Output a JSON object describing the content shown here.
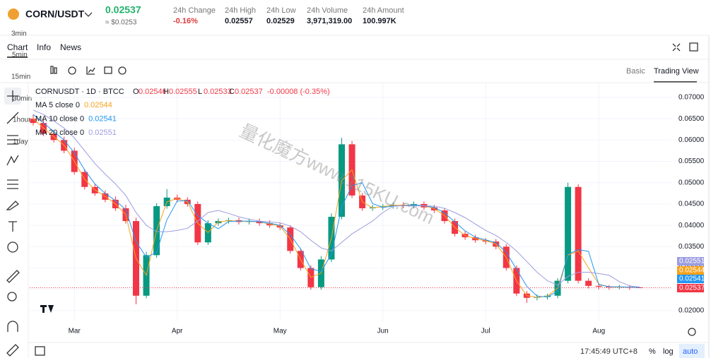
{
  "header": {
    "symbol": "CORN/USDT",
    "price": "0.02537",
    "approx": "≈ $0.0253",
    "stats": [
      {
        "label": "24h Change",
        "value": "-0.16%"
      },
      {
        "label": "24h High",
        "value": "0.02557"
      },
      {
        "label": "24h Low",
        "value": "0.02529"
      },
      {
        "label": "24h Volume",
        "value": "3,971,319.00"
      },
      {
        "label": "24h Amount",
        "value": "100.997K"
      }
    ]
  },
  "timeframes": [
    "3min",
    "15min",
    "30min",
    "1hour",
    "1day",
    "5min"
  ],
  "tabs": [
    "Chart",
    "Info",
    "News"
  ],
  "views": [
    "Basic",
    "Trading View"
  ],
  "footer": {
    "time": "17:45:49 UTC+8",
    "percent": "%",
    "log": "log",
    "auto": "auto"
  },
  "watermark": "量化魔方www.115KU.com",
  "chart_data": {
    "type": "candlestick",
    "symbol_line": "CORNUSDT · 1D · BTCC",
    "ohlc_labels": [
      "O",
      "H",
      "L",
      "C"
    ],
    "change": "-0.00008 (-0.35%)",
    "up_color": "#089981",
    "down_color": "#f23645",
    "categories": [
      null,
      null,
      null,
      null,
      "Mar",
      null,
      null,
      null,
      null,
      null,
      null,
      null,
      null,
      null,
      "Apr",
      null,
      null,
      null,
      null,
      null,
      null,
      null,
      null,
      null,
      "May",
      null,
      null,
      null,
      null,
      null,
      null,
      null,
      null,
      null,
      "Jun",
      null,
      null,
      null,
      null,
      null,
      null,
      null,
      null,
      null,
      "Jul",
      null,
      null,
      null,
      null,
      null,
      null,
      null,
      null,
      null,
      null,
      "Aug",
      null,
      null,
      null,
      null
    ],
    "open": [
      0.065,
      0.064,
      0.0615,
      0.06,
      0.0575,
      0.0525,
      0.049,
      0.0475,
      0.046,
      0.044,
      0.041,
      0.0235,
      0.033,
      0.0445,
      0.0465,
      0.046,
      0.045,
      0.036,
      0.0405,
      0.041,
      0.0412,
      0.0408,
      0.041,
      0.0405,
      0.04,
      0.0395,
      0.034,
      0.03,
      0.0255,
      0.032,
      0.042,
      0.059,
      0.047,
      0.044,
      0.0442,
      0.0445,
      0.0448,
      0.0446,
      0.045,
      0.0442,
      0.0435,
      0.041,
      0.038,
      0.0372,
      0.0365,
      0.0362,
      0.035,
      0.03,
      0.024,
      0.023,
      0.0232,
      0.0235,
      0.027,
      0.049,
      0.027,
      0.0258,
      0.0256,
      0.0255,
      0.0256,
      0.02546
    ],
    "high": [
      0.066,
      0.0648,
      0.0622,
      0.0608,
      0.0582,
      0.0532,
      0.0498,
      0.0482,
      0.0468,
      0.0448,
      0.0418,
      0.0338,
      0.0452,
      0.0485,
      0.0472,
      0.0466,
      0.0456,
      0.0412,
      0.0416,
      0.0418,
      0.0418,
      0.0416,
      0.0416,
      0.0412,
      0.0406,
      0.04,
      0.0346,
      0.0306,
      0.0328,
      0.0428,
      0.0605,
      0.0598,
      0.0476,
      0.0448,
      0.045,
      0.0454,
      0.0454,
      0.0456,
      0.0456,
      0.0448,
      0.044,
      0.0416,
      0.0386,
      0.0378,
      0.037,
      0.0368,
      0.0356,
      0.0306,
      0.0246,
      0.0238,
      0.024,
      0.0276,
      0.05,
      0.0496,
      0.0276,
      0.0264,
      0.026,
      0.026,
      0.026,
      0.02555
    ],
    "low": [
      0.0634,
      0.0609,
      0.0594,
      0.0569,
      0.0519,
      0.0484,
      0.0469,
      0.0454,
      0.0434,
      0.0404,
      0.0215,
      0.0229,
      0.0324,
      0.0439,
      0.0454,
      0.0444,
      0.0354,
      0.0354,
      0.0399,
      0.0404,
      0.0402,
      0.0402,
      0.0399,
      0.0394,
      0.0389,
      0.0334,
      0.0294,
      0.0249,
      0.0249,
      0.0314,
      0.0414,
      0.0464,
      0.0434,
      0.0434,
      0.0436,
      0.0439,
      0.044,
      0.044,
      0.0436,
      0.0429,
      0.0404,
      0.0374,
      0.0366,
      0.0359,
      0.0356,
      0.0344,
      0.0294,
      0.0234,
      0.0218,
      0.0224,
      0.0226,
      0.0229,
      0.0264,
      0.0264,
      0.0252,
      0.025,
      0.0249,
      0.025,
      0.0249,
      0.02533
    ],
    "close": [
      0.064,
      0.0615,
      0.06,
      0.0575,
      0.0525,
      0.049,
      0.0475,
      0.046,
      0.044,
      0.041,
      0.0235,
      0.033,
      0.0445,
      0.0465,
      0.046,
      0.045,
      0.036,
      0.0405,
      0.041,
      0.0412,
      0.0408,
      0.041,
      0.0405,
      0.04,
      0.0395,
      0.034,
      0.03,
      0.0255,
      0.032,
      0.042,
      0.059,
      0.047,
      0.044,
      0.0442,
      0.0445,
      0.0448,
      0.0446,
      0.045,
      0.0442,
      0.0435,
      0.041,
      0.038,
      0.0372,
      0.0365,
      0.0362,
      0.035,
      0.03,
      0.024,
      0.023,
      0.0232,
      0.0235,
      0.027,
      0.049,
      0.027,
      0.0258,
      0.0256,
      0.0255,
      0.0256,
      0.0255,
      0.02537
    ],
    "series": [
      {
        "name": "MA 5 close 0",
        "color": "#f7a21b",
        "values": [
          0.065,
          0.0628,
          0.0608,
          0.0588,
          0.055,
          0.0508,
          0.0483,
          0.0468,
          0.045,
          0.0425,
          0.0322,
          0.0283,
          0.0388,
          0.0455,
          0.0463,
          0.0455,
          0.0405,
          0.0383,
          0.0408,
          0.0411,
          0.041,
          0.0409,
          0.0408,
          0.0403,
          0.0398,
          0.0368,
          0.032,
          0.0278,
          0.0288,
          0.037,
          0.0505,
          0.053,
          0.0455,
          0.0441,
          0.0444,
          0.0447,
          0.0447,
          0.0448,
          0.0446,
          0.0439,
          0.0423,
          0.0395,
          0.0376,
          0.0369,
          0.0364,
          0.0356,
          0.0325,
          0.027,
          0.0235,
          0.0231,
          0.0234,
          0.0253,
          0.033,
          0.034,
          0.03,
          0.0262,
          0.0256,
          0.0255,
          0.0255,
          0.02544
        ]
      },
      {
        "name": "MA 10 close 0",
        "color": "#2196f3",
        "values": [
          0.066,
          0.064,
          0.062,
          0.06,
          0.057,
          0.053,
          0.0497,
          0.0475,
          0.0458,
          0.0437,
          0.0362,
          0.0325,
          0.0337,
          0.0413,
          0.0457,
          0.0458,
          0.0423,
          0.0405,
          0.0392,
          0.0409,
          0.041,
          0.041,
          0.0408,
          0.0405,
          0.04,
          0.0378,
          0.0345,
          0.0298,
          0.0292,
          0.0332,
          0.0443,
          0.0493,
          0.05,
          0.0451,
          0.0442,
          0.0445,
          0.0446,
          0.0448,
          0.0446,
          0.0442,
          0.0429,
          0.0408,
          0.0387,
          0.0372,
          0.0366,
          0.0359,
          0.0337,
          0.0297,
          0.0257,
          0.0234,
          0.0232,
          0.0246,
          0.0332,
          0.0343,
          0.0339,
          0.0261,
          0.0256,
          0.0256,
          0.0255,
          0.02541
        ]
      },
      {
        "name": "MA 20 close 0",
        "color": "#9c9ce0",
        "values": [
          0.067,
          0.066,
          0.0645,
          0.0628,
          0.0605,
          0.0575,
          0.0545,
          0.052,
          0.0497,
          0.047,
          0.043,
          0.04,
          0.0385,
          0.0385,
          0.0388,
          0.0393,
          0.041,
          0.043,
          0.0435,
          0.0428,
          0.042,
          0.0414,
          0.041,
          0.0408,
          0.0406,
          0.0398,
          0.0385,
          0.0365,
          0.0347,
          0.034,
          0.036,
          0.038,
          0.0395,
          0.041,
          0.043,
          0.0445,
          0.0446,
          0.0445,
          0.0446,
          0.0445,
          0.044,
          0.043,
          0.0418,
          0.0403,
          0.0388,
          0.0376,
          0.036,
          0.034,
          0.0315,
          0.029,
          0.027,
          0.026,
          0.028,
          0.029,
          0.029,
          0.0287,
          0.0283,
          0.0268,
          0.0258,
          0.02551
        ]
      }
    ],
    "ylim": [
      0.0175,
      0.0733
    ],
    "yticks": [
      {
        "value": 0.02,
        "label": "0.02000"
      },
      {
        "value": 0.025,
        "label": "0.02500"
      },
      {
        "value": 0.03,
        "label": "0.03000"
      },
      {
        "value": 0.035,
        "label": "0.03500"
      },
      {
        "value": 0.04,
        "label": "0.04000"
      },
      {
        "value": 0.045,
        "label": "0.04500"
      },
      {
        "value": 0.05,
        "label": "0.05000"
      },
      {
        "value": 0.055,
        "label": "0.05500"
      },
      {
        "value": 0.06,
        "label": "0.06000"
      },
      {
        "value": 0.065,
        "label": "0.06500"
      },
      {
        "value": 0.07,
        "label": "0.07000"
      }
    ],
    "grid": true
  }
}
